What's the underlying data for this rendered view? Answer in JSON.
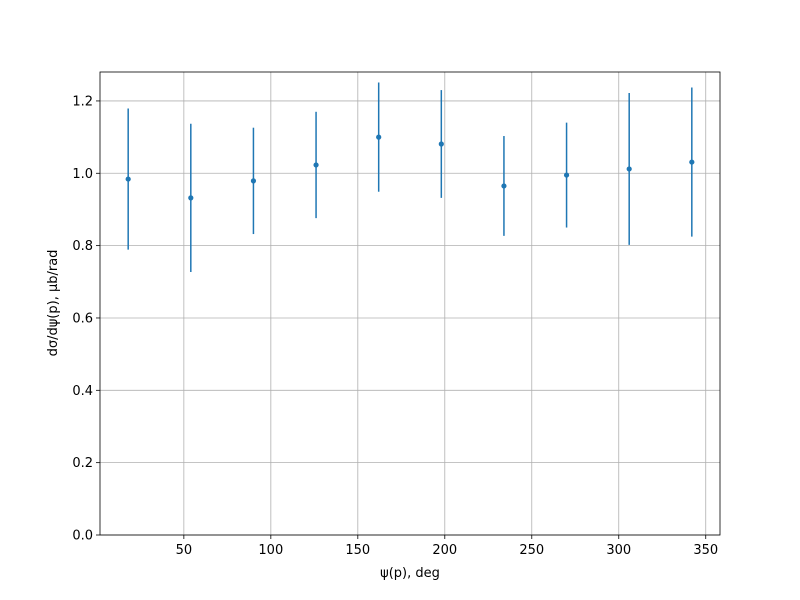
{
  "chart_data": {
    "type": "errorbar",
    "xlabel": "ψ(p), deg",
    "ylabel": "dσ/dψ(p), μb/rad",
    "x": [
      18,
      54,
      90,
      126,
      162,
      198,
      234,
      270,
      306,
      342
    ],
    "values": [
      0.984,
      0.932,
      0.979,
      1.023,
      1.1,
      1.081,
      0.965,
      0.995,
      1.012,
      1.031
    ],
    "errors": [
      0.195,
      0.205,
      0.147,
      0.147,
      0.151,
      0.149,
      0.138,
      0.145,
      0.21,
      0.206
    ],
    "color": "#1f77b4",
    "xlim": [
      1.8,
      358.2
    ],
    "ylim": [
      0,
      1.28
    ],
    "xticks": [
      50,
      100,
      150,
      200,
      250,
      300,
      350
    ],
    "yticks": [
      {
        "value": 0,
        "label": "0.0"
      },
      {
        "value": 0.2,
        "label": "0.2"
      },
      {
        "value": 0.4,
        "label": "0.4"
      },
      {
        "value": 0.6,
        "label": "0.6"
      },
      {
        "value": 0.8,
        "label": "0.8"
      },
      {
        "value": 1.0,
        "label": "1.0"
      },
      {
        "value": 1.2,
        "label": "1.2"
      }
    ],
    "grid": true
  }
}
